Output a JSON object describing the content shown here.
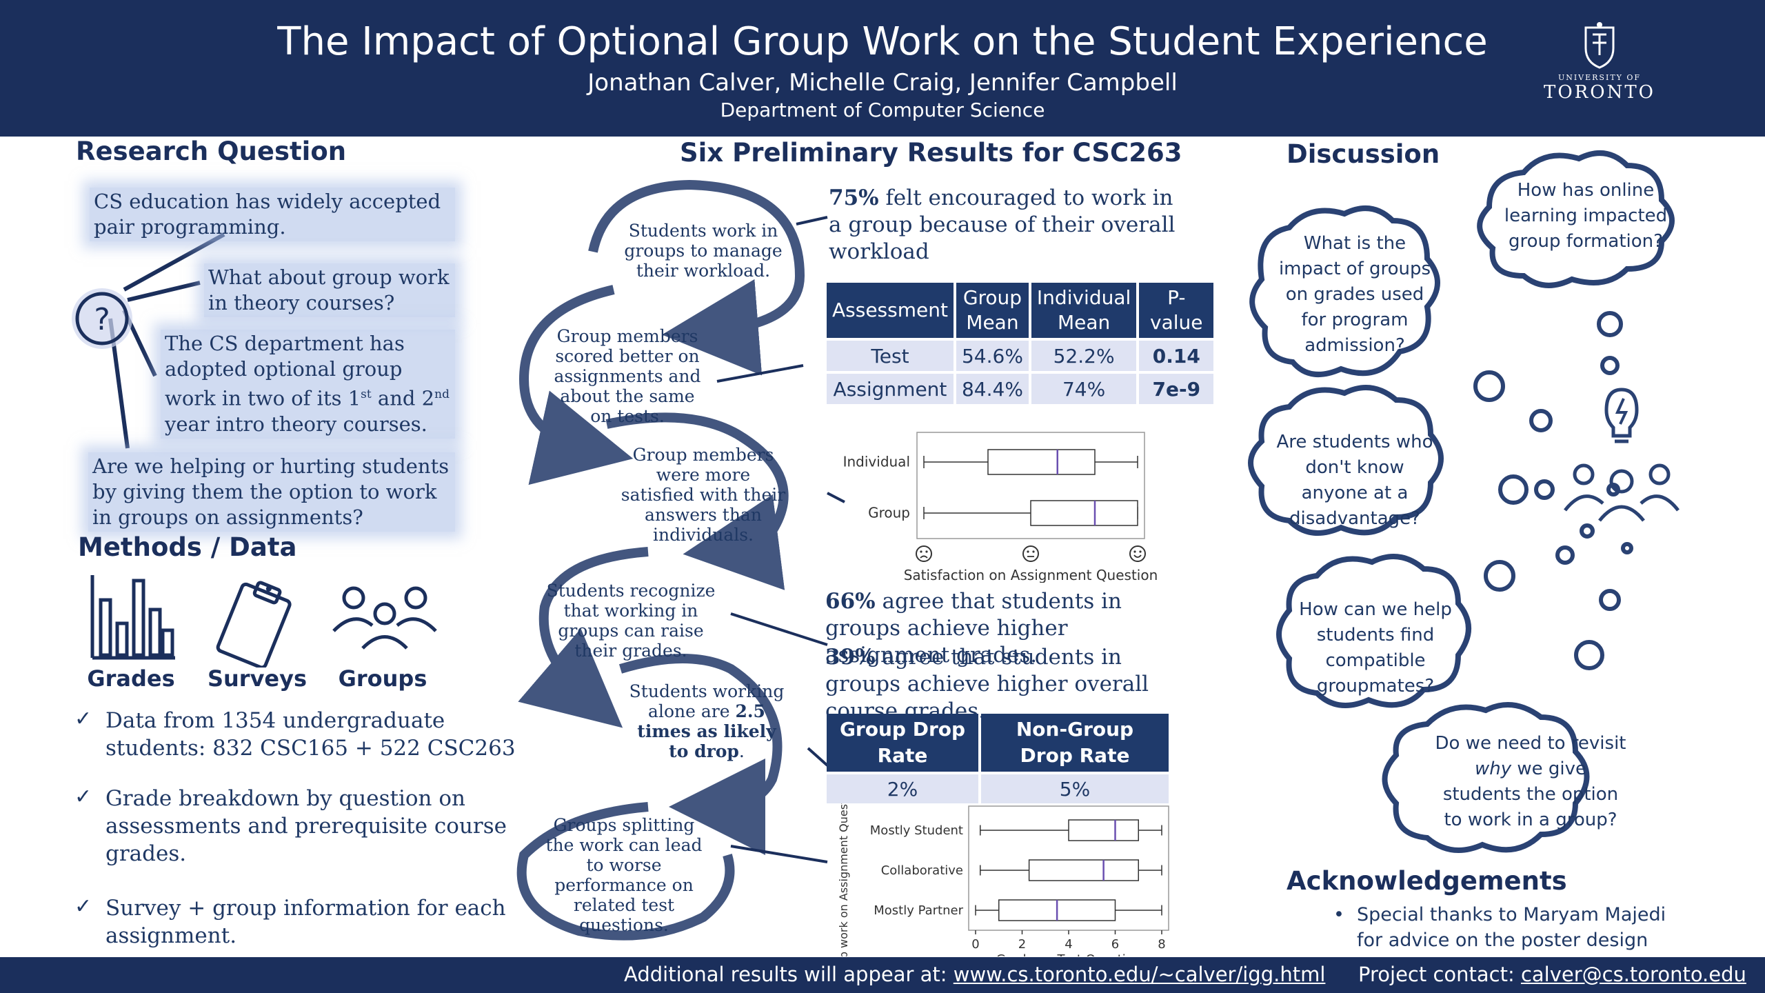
{
  "header": {
    "title": "The Impact of Optional Group Work on the Student Experience",
    "authors": "Jonathan Calver, Michelle Craig, Jennifer Campbell",
    "department": "Department of Computer Science",
    "logo_small": "UNIVERSITY OF",
    "logo_big": "TORONTO"
  },
  "research": {
    "heading": "Research Question",
    "q_symbol": "?",
    "box1": "CS education has widely accepted pair programming.",
    "box2": "What about group work in theory courses?",
    "box3_a": "The CS department has adopted optional group work in two of its 1",
    "box3_sup1": "st",
    "box3_b": " and 2",
    "box3_sup2": "nd",
    "box3_c": " year intro theory courses.",
    "box4": "Are we helping or hurting students by giving them the option to work in groups on assignments?"
  },
  "methods": {
    "heading": "Methods / Data",
    "icons": [
      {
        "label": "Grades",
        "icon": "bar-chart-icon"
      },
      {
        "label": "Surveys",
        "icon": "clipboard-icon"
      },
      {
        "label": "Groups",
        "icon": "people-group-icon"
      }
    ],
    "check": "✓",
    "items": [
      "Data from 1354 undergraduate students: 832 CSC165 + 522 CSC263",
      "Grade breakdown by question on assessments and prerequisite course grades.",
      "Survey + group information for each assignment."
    ]
  },
  "results": {
    "heading": "Six Preliminary Results for CSC263",
    "arc1": "Students work in groups to manage their workload.",
    "arc2": "Group members scored better on assignments and about the same on tests.",
    "arc3": "Group members were more satisfied with their answers than individuals.",
    "arc4": "Students recognize that working in groups can raise their grades.",
    "arc5_a": "Students working alone are ",
    "arc5_b": "2.5 times as likely to drop",
    "arc5_c": ".",
    "arc6": "Groups splitting the work can lead to worse performance on related test questions.",
    "stat1_pct": "75%",
    "stat1_text": " felt encouraged to work in a group because of their overall workload",
    "stat2_pct": "66%",
    "stat2_text": " agree that students in groups achieve higher assignment grades.",
    "stat3_pct": "39%",
    "stat3_text": " agree that students in groups achieve higher overall course grades.",
    "table1": {
      "headers": [
        "Assessment",
        "Group Mean",
        "Individual Mean",
        "P-value"
      ],
      "rows": [
        [
          "Test",
          "54.6%",
          "52.2%",
          "0.14"
        ],
        [
          "Assignment",
          "84.4%",
          "74%",
          "7e-9"
        ]
      ]
    },
    "table2": {
      "headers": [
        "Group Drop Rate",
        "Non-Group Drop Rate"
      ],
      "row": [
        "2%",
        "5%"
      ]
    }
  },
  "chart_data": [
    {
      "type": "boxplot",
      "categories": [
        "Individual",
        "Group"
      ],
      "xlabel": "Satisfaction on Assignment Question",
      "x_tick_icons": [
        "sad-face-icon",
        "neutral-face-icon",
        "happy-face-icon"
      ],
      "xlim": [
        1,
        5
      ],
      "series": [
        {
          "name": "Individual",
          "min": 1,
          "q1": 2.2,
          "median": 3.5,
          "q3": 4.2,
          "max": 5
        },
        {
          "name": "Group",
          "min": 1,
          "q1": 3,
          "median": 4.2,
          "q3": 5,
          "max": 5
        }
      ]
    },
    {
      "type": "boxplot",
      "categories": [
        "Mostly Student",
        "Collaborative",
        "Mostly Partner"
      ],
      "xlabel": "Grade on Test Question",
      "ylabel": "Group work on Assignment Question",
      "xlim": [
        0,
        8
      ],
      "xticks": [
        0,
        2,
        4,
        6,
        8
      ],
      "series": [
        {
          "name": "Mostly Student",
          "min": 0.2,
          "q1": 4,
          "median": 6,
          "q3": 7,
          "max": 8
        },
        {
          "name": "Collaborative",
          "min": 0.2,
          "q1": 2.3,
          "median": 5.5,
          "q3": 7,
          "max": 8
        },
        {
          "name": "Mostly Partner",
          "min": 0,
          "q1": 1,
          "median": 3.5,
          "q3": 6,
          "max": 8
        }
      ]
    }
  ],
  "discussion": {
    "heading": "Discussion",
    "clouds": [
      "How has online learning impacted group formation?",
      "What is the impact of groups on grades used for program admission?",
      "Are students who don't know anyone at a disadvantage?",
      "How can we help students find compatible groupmates?",
      "Do we need to revisit why we give students the option to work in a group?"
    ],
    "cloud5_parts": [
      "Do we need to revisit ",
      "why",
      " we give students the option to work in a group?"
    ],
    "idea_icon": "lightbulb-people-icon"
  },
  "ack": {
    "heading": "Acknowledgements",
    "bullet": "•",
    "text": "Special thanks to Maryam Majedi for advice on the poster design"
  },
  "footer": {
    "left_label": "Additional results will appear at: ",
    "left_link": "www.cs.toronto.edu/~calver/igg.html",
    "right_label": "Project contact: ",
    "right_link": "calver@cs.toronto.edu"
  }
}
